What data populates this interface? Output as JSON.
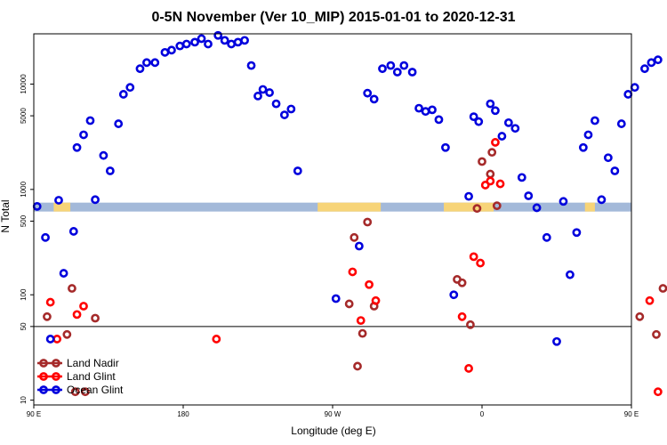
{
  "chart_data": {
    "type": "scatter",
    "title": "0-5N November (Ver 10_MIP)   2015-01-01 to 2020-12-31",
    "xlabel": "Longitude (deg E)",
    "ylabel": "N Total",
    "xlim": [
      90,
      450
    ],
    "ylim": [
      9,
      30000
    ],
    "ylog": true,
    "x_ticks": [
      {
        "value": 90,
        "label": "90 E"
      },
      {
        "value": 180,
        "label": "180"
      },
      {
        "value": 270,
        "label": "90 W"
      },
      {
        "value": 360,
        "label": "0"
      },
      {
        "value": 450,
        "label": "90 E"
      },
      {
        "value": 540,
        "label": "180"
      }
    ],
    "y_ticks": [
      {
        "value": 10,
        "label": "10"
      },
      {
        "value": 50,
        "label": "50"
      },
      {
        "value": 100,
        "label": "100"
      },
      {
        "value": 500,
        "label": "500"
      },
      {
        "value": 1000,
        "label": "1000"
      },
      {
        "value": 5000,
        "label": "5000"
      },
      {
        "value": 10000,
        "label": "10000"
      }
    ],
    "reference_line": 50,
    "grid": false,
    "legend_position": "bottom-left",
    "series": [
      {
        "name": "Land Nadir",
        "color": "#a52a2a",
        "points": [
          [
            98,
            62
          ],
          [
            110,
            42
          ],
          [
            113,
            115
          ],
          [
            115,
            12
          ],
          [
            121,
            12
          ],
          [
            127,
            60
          ],
          [
            280,
            82
          ],
          [
            283,
            350
          ],
          [
            285,
            21
          ],
          [
            288,
            43
          ],
          [
            291,
            490
          ],
          [
            295,
            78
          ],
          [
            345,
            140
          ],
          [
            348,
            130
          ],
          [
            353,
            52
          ],
          [
            357,
            660
          ],
          [
            360,
            1840
          ],
          [
            365,
            1400
          ],
          [
            366,
            2250
          ],
          [
            369,
            700
          ],
          [
            455,
            62
          ],
          [
            465,
            42
          ],
          [
            469,
            115
          ],
          [
            478,
            60
          ]
        ]
      },
      {
        "name": "Land Glint",
        "color": "#ff0000",
        "points": [
          [
            100,
            85
          ],
          [
            104,
            38
          ],
          [
            116,
            65
          ],
          [
            120,
            78
          ],
          [
            200,
            38
          ],
          [
            282,
            165
          ],
          [
            287,
            57
          ],
          [
            292,
            125
          ],
          [
            296,
            88
          ],
          [
            348,
            62
          ],
          [
            352,
            20
          ],
          [
            355,
            230
          ],
          [
            359,
            200
          ],
          [
            362,
            1100
          ],
          [
            365,
            1200
          ],
          [
            368,
            2800
          ],
          [
            371,
            1130
          ],
          [
            461,
            88
          ],
          [
            466,
            12
          ],
          [
            475,
            65
          ],
          [
            480,
            78
          ],
          [
            486,
            12
          ],
          [
            492,
            12
          ]
        ]
      },
      {
        "name": "Ocean Glint",
        "color": "#0000dd",
        "points": [
          [
            92,
            690
          ],
          [
            97,
            350
          ],
          [
            100,
            38
          ],
          [
            105,
            790
          ],
          [
            108,
            160
          ],
          [
            114,
            400
          ],
          [
            116,
            2500
          ],
          [
            120,
            3300
          ],
          [
            124,
            4500
          ],
          [
            127,
            800
          ],
          [
            132,
            2100
          ],
          [
            136,
            1500
          ],
          [
            141,
            4200
          ],
          [
            144,
            8000
          ],
          [
            148,
            9300
          ],
          [
            154,
            14000
          ],
          [
            158,
            16000
          ],
          [
            163,
            16000
          ],
          [
            169,
            20000
          ],
          [
            173,
            21000
          ],
          [
            178,
            23000
          ],
          [
            182,
            24000
          ],
          [
            187,
            25000
          ],
          [
            191,
            27000
          ],
          [
            195,
            24000
          ],
          [
            201,
            29000
          ],
          [
            205,
            26000
          ],
          [
            209,
            24000
          ],
          [
            213,
            25000
          ],
          [
            217,
            26000
          ],
          [
            221,
            15000
          ],
          [
            225,
            7700
          ],
          [
            228,
            8900
          ],
          [
            232,
            8300
          ],
          [
            236,
            6500
          ],
          [
            241,
            5100
          ],
          [
            245,
            5800
          ],
          [
            249,
            1500
          ],
          [
            272,
            92
          ],
          [
            286,
            290
          ],
          [
            291,
            8200
          ],
          [
            295,
            7200
          ],
          [
            300,
            14000
          ],
          [
            305,
            15000
          ],
          [
            309,
            13000
          ],
          [
            313,
            15000
          ],
          [
            318,
            13000
          ],
          [
            322,
            5900
          ],
          [
            326,
            5500
          ],
          [
            330,
            5700
          ],
          [
            334,
            4600
          ],
          [
            338,
            2500
          ],
          [
            343,
            100
          ],
          [
            352,
            860
          ],
          [
            355,
            4900
          ],
          [
            358,
            4400
          ],
          [
            365,
            6500
          ],
          [
            368,
            5600
          ],
          [
            372,
            3200
          ],
          [
            376,
            4300
          ],
          [
            380,
            3800
          ],
          [
            384,
            1300
          ],
          [
            388,
            870
          ],
          [
            393,
            670
          ],
          [
            399,
            350
          ],
          [
            405,
            36
          ],
          [
            409,
            770
          ],
          [
            413,
            155
          ],
          [
            417,
            390
          ],
          [
            421,
            2500
          ],
          [
            424,
            3300
          ],
          [
            428,
            4500
          ],
          [
            432,
            800
          ],
          [
            436,
            2000
          ],
          [
            440,
            1500
          ],
          [
            444,
            4200
          ],
          [
            448,
            8000
          ],
          [
            452,
            9300
          ],
          [
            458,
            14000
          ],
          [
            462,
            16000
          ],
          [
            466,
            17000
          ]
        ]
      }
    ],
    "band": {
      "y": 680,
      "base_color": "#a3b9d9",
      "land_color": "#f7d478",
      "land_segments": [
        [
          102,
          112
        ],
        [
          261,
          299
        ],
        [
          337,
          367
        ],
        [
          422,
          428
        ]
      ]
    }
  }
}
